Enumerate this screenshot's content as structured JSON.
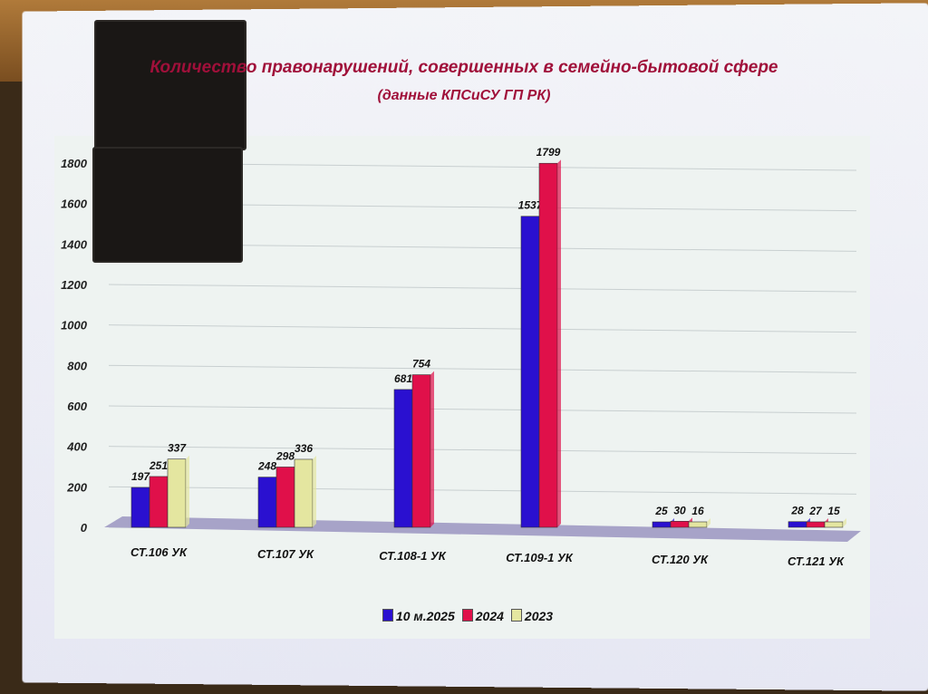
{
  "chart_data": {
    "type": "bar",
    "title": "Количество правонарушений, совершенных в семейно-бытовой сфере",
    "subtitle": "(данные КПСиСУ ГП РК)",
    "categories": [
      "СТ.106 УК",
      "СТ.107 УК",
      "СТ.108-1 УК",
      "СТ.109-1 УК",
      "СТ.120 УК",
      "СТ.121 УК"
    ],
    "series": [
      {
        "name": "10 м.2025",
        "color": "#2a10d0",
        "values": [
          197,
          248,
          681,
          1537,
          25,
          28
        ]
      },
      {
        "name": "2024",
        "color": "#e0104a",
        "values": [
          251,
          298,
          754,
          1799,
          30,
          27
        ]
      },
      {
        "name": "2023",
        "color": "#e4e6a0",
        "values": [
          337,
          336,
          null,
          null,
          16,
          15
        ]
      }
    ],
    "yticks": [
      "0",
      "200",
      "400",
      "600",
      "800",
      "1000",
      "1200",
      "1400",
      "1600",
      "1800"
    ],
    "ylim": [
      0,
      1800
    ],
    "grid": true,
    "legend": "bottom"
  }
}
